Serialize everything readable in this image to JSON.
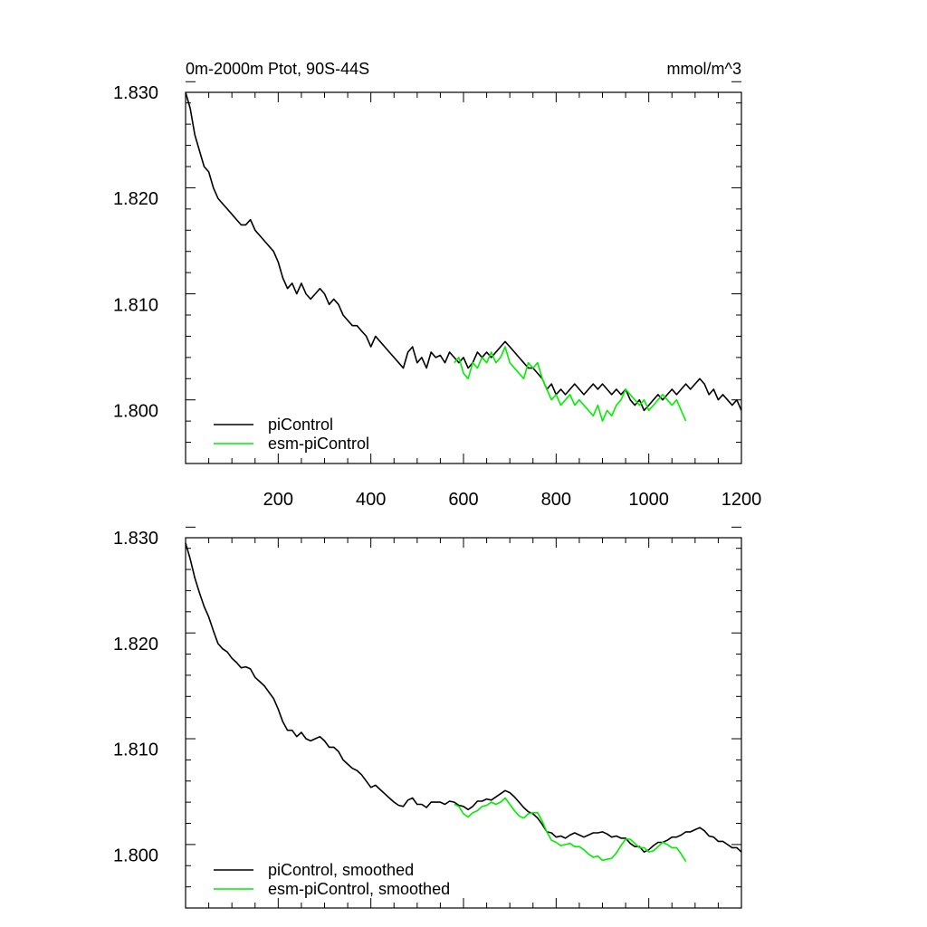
{
  "chart_data": [
    {
      "type": "line",
      "title": "0m-2000m Ptot, 90S-44S",
      "units": "mmol/m^3",
      "xlim": [
        0,
        1200
      ],
      "ylim": [
        1.795,
        1.83
      ],
      "xticks": [
        200,
        400,
        600,
        800,
        1000,
        1200
      ],
      "xtick_labels": [
        "200",
        "400",
        "600",
        "800",
        "1000",
        "1200"
      ],
      "yticks": [
        1.8,
        1.81,
        1.82,
        1.83
      ],
      "ytick_labels": [
        "1.800",
        "1.810",
        "1.820",
        "1.830"
      ],
      "grid": false,
      "legend_position": "bottom-left",
      "series": [
        {
          "name": "piControl",
          "color": "#000000",
          "x": [
            0,
            10,
            20,
            30,
            40,
            50,
            60,
            70,
            80,
            90,
            100,
            110,
            120,
            130,
            140,
            150,
            160,
            170,
            180,
            190,
            200,
            210,
            220,
            230,
            240,
            250,
            260,
            270,
            280,
            290,
            300,
            310,
            320,
            330,
            340,
            350,
            360,
            370,
            380,
            390,
            400,
            410,
            420,
            430,
            440,
            450,
            460,
            470,
            480,
            490,
            500,
            510,
            520,
            530,
            540,
            550,
            560,
            570,
            580,
            590,
            600,
            610,
            620,
            630,
            640,
            650,
            660,
            670,
            680,
            690,
            700,
            710,
            720,
            730,
            740,
            750,
            760,
            770,
            780,
            790,
            800,
            810,
            820,
            830,
            840,
            850,
            860,
            870,
            880,
            890,
            900,
            910,
            920,
            930,
            940,
            950,
            960,
            970,
            980,
            990,
            1000,
            1010,
            1020,
            1030,
            1040,
            1050,
            1060,
            1070,
            1080,
            1090,
            1100,
            1110,
            1120,
            1130,
            1140,
            1150,
            1160,
            1170,
            1180,
            1190,
            1200
          ],
          "y": [
            1.83,
            1.8285,
            1.826,
            1.8245,
            1.823,
            1.8225,
            1.821,
            1.82,
            1.8195,
            1.819,
            1.8185,
            1.818,
            1.8175,
            1.8175,
            1.818,
            1.817,
            1.8165,
            1.816,
            1.8155,
            1.815,
            1.814,
            1.8125,
            1.8115,
            1.812,
            1.811,
            1.812,
            1.811,
            1.8105,
            1.811,
            1.8115,
            1.811,
            1.81,
            1.8105,
            1.81,
            1.809,
            1.8085,
            1.808,
            1.808,
            1.8075,
            1.807,
            1.806,
            1.807,
            1.8065,
            1.806,
            1.8055,
            1.805,
            1.8045,
            1.804,
            1.8055,
            1.806,
            1.8045,
            1.805,
            1.804,
            1.8055,
            1.805,
            1.8052,
            1.8045,
            1.8055,
            1.805,
            1.8045,
            1.805,
            1.804,
            1.8045,
            1.8055,
            1.805,
            1.8055,
            1.805,
            1.8055,
            1.806,
            1.8065,
            1.806,
            1.8055,
            1.805,
            1.8045,
            1.804,
            1.804,
            1.8035,
            1.803,
            1.802,
            1.8025,
            1.8015,
            1.802,
            1.8015,
            1.802,
            1.8025,
            1.802,
            1.8015,
            1.802,
            1.8025,
            1.802,
            1.8025,
            1.802,
            1.8015,
            1.802,
            1.8015,
            1.802,
            1.801,
            1.8005,
            1.801,
            1.8,
            1.8005,
            1.801,
            1.8015,
            1.801,
            1.8015,
            1.802,
            1.8015,
            1.802,
            1.8025,
            1.802,
            1.8025,
            1.803,
            1.8025,
            1.8015,
            1.802,
            1.801,
            1.8015,
            1.801,
            1.8005,
            1.801,
            1.8
          ]
        },
        {
          "name": "esm-piControl",
          "color": "#00ee00",
          "x": [
            580,
            590,
            600,
            610,
            620,
            630,
            640,
            650,
            660,
            670,
            680,
            690,
            700,
            710,
            720,
            730,
            740,
            750,
            760,
            770,
            780,
            790,
            800,
            810,
            820,
            830,
            840,
            850,
            860,
            870,
            880,
            890,
            900,
            910,
            920,
            930,
            940,
            950,
            960,
            970,
            980,
            990,
            1000,
            1010,
            1020,
            1030,
            1040,
            1050,
            1060,
            1070,
            1080
          ],
          "y": [
            1.8045,
            1.805,
            1.8035,
            1.803,
            1.8045,
            1.804,
            1.805,
            1.8045,
            1.8055,
            1.8045,
            1.805,
            1.806,
            1.8045,
            1.804,
            1.8035,
            1.803,
            1.8045,
            1.804,
            1.8045,
            1.803,
            1.802,
            1.801,
            1.8015,
            1.8005,
            1.801,
            1.8015,
            1.8005,
            1.801,
            1.8005,
            1.8,
            1.7995,
            1.8005,
            1.799,
            1.8,
            1.7995,
            1.8005,
            1.801,
            1.802,
            1.8015,
            1.801,
            1.8005,
            1.801,
            1.8,
            1.8005,
            1.801,
            1.8015,
            1.801,
            1.8005,
            1.801,
            1.8,
            1.799
          ]
        }
      ]
    },
    {
      "type": "line",
      "xlim": [
        0,
        1200
      ],
      "ylim": [
        1.795,
        1.83
      ],
      "xticks": [
        200,
        400,
        600,
        800,
        1000,
        1200
      ],
      "yticks": [
        1.8,
        1.81,
        1.82,
        1.83
      ],
      "ytick_labels": [
        "1.800",
        "1.810",
        "1.820",
        "1.830"
      ],
      "grid": false,
      "legend_position": "bottom-left",
      "series": [
        {
          "name": "piControl, smoothed",
          "color": "#000000",
          "x": [
            0,
            10,
            20,
            30,
            40,
            50,
            60,
            70,
            80,
            90,
            100,
            110,
            120,
            130,
            140,
            150,
            160,
            170,
            180,
            190,
            200,
            210,
            220,
            230,
            240,
            250,
            260,
            270,
            280,
            290,
            300,
            310,
            320,
            330,
            340,
            350,
            360,
            370,
            380,
            390,
            400,
            410,
            420,
            430,
            440,
            450,
            460,
            470,
            480,
            490,
            500,
            510,
            520,
            530,
            540,
            550,
            560,
            570,
            580,
            590,
            600,
            610,
            620,
            630,
            640,
            650,
            660,
            670,
            680,
            690,
            700,
            710,
            720,
            730,
            740,
            750,
            760,
            770,
            780,
            790,
            800,
            810,
            820,
            830,
            840,
            850,
            860,
            870,
            880,
            890,
            900,
            910,
            920,
            930,
            940,
            950,
            960,
            970,
            980,
            990,
            1000,
            1010,
            1020,
            1030,
            1040,
            1050,
            1060,
            1070,
            1080,
            1090,
            1100,
            1110,
            1120,
            1130,
            1140,
            1150,
            1160,
            1170,
            1180,
            1190,
            1200
          ],
          "y": [
            1.8295,
            1.828,
            1.8262,
            1.8248,
            1.8235,
            1.8225,
            1.8212,
            1.82,
            1.8195,
            1.8192,
            1.8186,
            1.8182,
            1.8177,
            1.8178,
            1.8176,
            1.8168,
            1.8164,
            1.816,
            1.8154,
            1.8148,
            1.8138,
            1.8126,
            1.8118,
            1.8118,
            1.8112,
            1.8116,
            1.811,
            1.8108,
            1.811,
            1.8112,
            1.8108,
            1.8102,
            1.8102,
            1.8098,
            1.809,
            1.8086,
            1.8082,
            1.808,
            1.8076,
            1.807,
            1.8064,
            1.8066,
            1.8062,
            1.8058,
            1.8054,
            1.805,
            1.8047,
            1.8046,
            1.8052,
            1.8054,
            1.8048,
            1.8048,
            1.8045,
            1.805,
            1.805,
            1.805,
            1.8048,
            1.8051,
            1.805,
            1.8047,
            1.8046,
            1.8043,
            1.8046,
            1.8051,
            1.8051,
            1.8053,
            1.8052,
            1.8055,
            1.8058,
            1.8061,
            1.8059,
            1.8055,
            1.805,
            1.8045,
            1.8041,
            1.8039,
            1.8035,
            1.8029,
            1.8022,
            1.8021,
            1.8017,
            1.8018,
            1.8016,
            1.8019,
            1.8021,
            1.8019,
            1.8017,
            1.8019,
            1.8021,
            1.8021,
            1.8022,
            1.802,
            1.8017,
            1.8018,
            1.8016,
            1.8016,
            1.8011,
            1.8008,
            1.8008,
            1.8003,
            1.8005,
            1.8009,
            1.8012,
            1.8012,
            1.8014,
            1.8017,
            1.8017,
            1.8019,
            1.8022,
            1.8022,
            1.8024,
            1.8026,
            1.8023,
            1.8018,
            1.8017,
            1.8013,
            1.8013,
            1.801,
            1.8007,
            1.8007,
            1.8003
          ]
        },
        {
          "name": "esm-piControl, smoothed",
          "color": "#00ee00",
          "x": [
            580,
            590,
            600,
            610,
            620,
            630,
            640,
            650,
            660,
            670,
            680,
            690,
            700,
            710,
            720,
            730,
            740,
            750,
            760,
            770,
            780,
            790,
            800,
            810,
            820,
            830,
            840,
            850,
            860,
            870,
            880,
            890,
            900,
            910,
            920,
            930,
            940,
            950,
            960,
            970,
            980,
            990,
            1000,
            1010,
            1020,
            1030,
            1040,
            1050,
            1060,
            1070,
            1080
          ],
          "y": [
            1.8048,
            1.8046,
            1.8039,
            1.8036,
            1.804,
            1.8042,
            1.8046,
            1.8047,
            1.805,
            1.8048,
            1.805,
            1.8054,
            1.8048,
            1.8042,
            1.8037,
            1.8035,
            1.8039,
            1.804,
            1.804,
            1.8032,
            1.8022,
            1.8014,
            1.8012,
            1.8009,
            1.801,
            1.8011,
            1.8008,
            1.8008,
            1.8005,
            1.8001,
            1.7998,
            1.7999,
            1.7995,
            1.7996,
            1.7997,
            1.8002,
            1.8009,
            1.8015,
            1.8015,
            1.8011,
            1.8007,
            1.8007,
            1.8003,
            1.8004,
            1.8008,
            1.8012,
            1.801,
            1.8007,
            1.8007,
            1.8001,
            1.7994
          ]
        }
      ]
    }
  ]
}
